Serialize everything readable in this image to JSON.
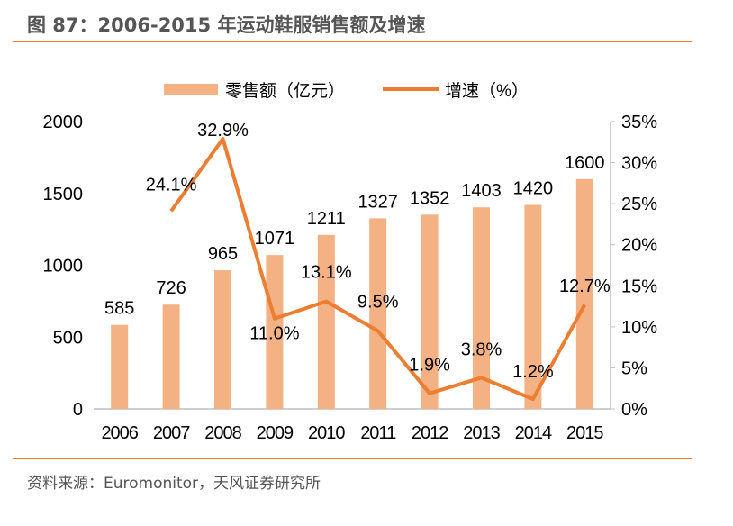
{
  "title": "图 87：2006-2015 年运动鞋服销售额及增速",
  "source": "资料来源：Euromonitor，天风证券研究所",
  "colors": {
    "bar": "#F4B183",
    "line": "#ED7D31",
    "rule": "#ED7D31"
  },
  "chart_data": {
    "type": "bar+line",
    "categories": [
      "2006",
      "2007",
      "2008",
      "2009",
      "2010",
      "2011",
      "2012",
      "2013",
      "2014",
      "2015"
    ],
    "series": [
      {
        "name": "零售额（亿元）",
        "type": "bar",
        "axis": "left",
        "values": [
          585,
          726,
          965,
          1071,
          1211,
          1327,
          1352,
          1403,
          1420,
          1600
        ],
        "labels": [
          "585",
          "726",
          "965",
          "1071",
          "1211",
          "1327",
          "1352",
          "1403",
          "1420",
          "1600"
        ]
      },
      {
        "name": "增速（%）",
        "type": "line",
        "axis": "right",
        "values": [
          null,
          24.1,
          32.9,
          11.0,
          13.1,
          9.5,
          1.9,
          3.8,
          1.2,
          12.7
        ],
        "labels": [
          "",
          "24.1%",
          "32.9%",
          "11.0%",
          "13.1%",
          "9.5%",
          "1.9%",
          "3.8%",
          "1.2%",
          "12.7%"
        ]
      }
    ],
    "y_left": {
      "range": [
        0,
        2000
      ],
      "ticks": [
        "0",
        "500",
        "1000",
        "1500",
        "2000"
      ]
    },
    "y_right": {
      "range": [
        0,
        35
      ],
      "ticks": [
        "0%",
        "5%",
        "10%",
        "15%",
        "20%",
        "25%",
        "30%",
        "35%"
      ]
    },
    "legend": "top",
    "grid": false
  }
}
